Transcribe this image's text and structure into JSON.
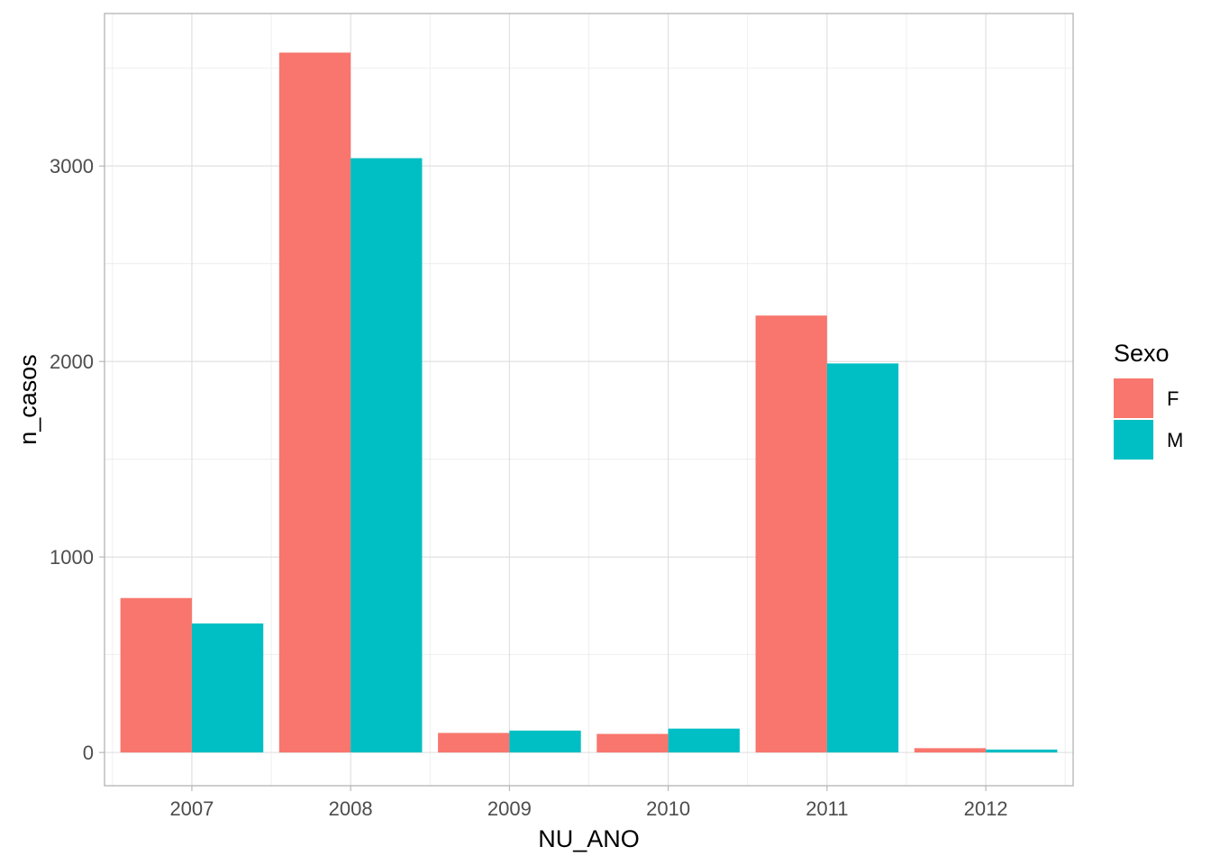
{
  "chart_data": {
    "type": "bar",
    "title": "",
    "xlabel": "NU_ANO",
    "ylabel": "n_casos",
    "categories": [
      "2007",
      "2008",
      "2009",
      "2010",
      "2011",
      "2012"
    ],
    "series": [
      {
        "name": "F",
        "color": "#F8766D",
        "values": [
          790,
          3580,
          100,
          95,
          2235,
          22
        ]
      },
      {
        "name": "M",
        "color": "#00BFC4",
        "values": [
          660,
          3040,
          112,
          122,
          1990,
          15
        ]
      }
    ],
    "ylim": [
      -170,
      3780
    ],
    "yticks": [
      0,
      1000,
      2000,
      3000
    ],
    "ylabels": [
      "0",
      "1000",
      "2000",
      "3000"
    ],
    "legend": {
      "title": "Sexo",
      "position": "right"
    },
    "grid": true,
    "theme": "light"
  }
}
